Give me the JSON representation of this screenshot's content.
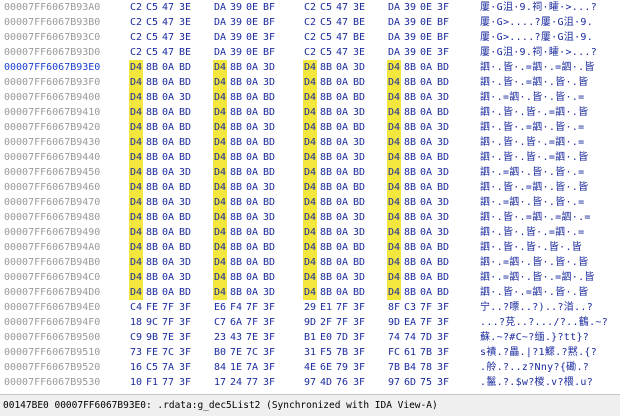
{
  "hex_view": {
    "rows": [
      {
        "address": "00007FF6067B93A0",
        "bytes": [
          "C2",
          "C5",
          "47",
          "3E",
          "DA",
          "39",
          "0E",
          "BF",
          "C2",
          "C5",
          "47",
          "3E",
          "DA",
          "39",
          "0E",
          "3F"
        ],
        "highlight": [],
        "ascii": "屢·G沮·9.祠·矐·>...?",
        "current": false
      },
      {
        "address": "00007FF6067B93B0",
        "bytes": [
          "C2",
          "C5",
          "47",
          "3E",
          "DA",
          "39",
          "0E",
          "BF",
          "C2",
          "C5",
          "47",
          "BE",
          "DA",
          "39",
          "0E",
          "BF"
        ],
        "highlight": [],
        "ascii": "屢·G>....?屢·G沮·9.",
        "current": false
      },
      {
        "address": "00007FF6067B93C0",
        "bytes": [
          "C2",
          "C5",
          "47",
          "3E",
          "DA",
          "39",
          "0E",
          "3F",
          "C2",
          "C5",
          "47",
          "BE",
          "DA",
          "39",
          "0E",
          "BF"
        ],
        "highlight": [],
        "ascii": "屢·G>....?屢·G沮·9.",
        "current": false
      },
      {
        "address": "00007FF6067B93D0",
        "bytes": [
          "C2",
          "C5",
          "47",
          "BE",
          "DA",
          "39",
          "0E",
          "BF",
          "C2",
          "C5",
          "47",
          "3E",
          "DA",
          "39",
          "0E",
          "3F"
        ],
        "highlight": [],
        "ascii": "屢·G沮·9.祠·矐·>...?",
        "current": false
      },
      {
        "address": "00007FF6067B93E0",
        "bytes": [
          "D4",
          "8B",
          "0A",
          "BD",
          "D4",
          "8B",
          "0A",
          "3D",
          "D4",
          "8B",
          "0A",
          "3D",
          "D4",
          "8B",
          "0A",
          "BD"
        ],
        "highlight": [
          0,
          4,
          8,
          12
        ],
        "ascii": "訵·.皆·.=訵·.=訵·.皆",
        "current": true
      },
      {
        "address": "00007FF6067B93F0",
        "bytes": [
          "D4",
          "8B",
          "0A",
          "BD",
          "D4",
          "8B",
          "0A",
          "3D",
          "D4",
          "8B",
          "0A",
          "BD",
          "D4",
          "8B",
          "0A",
          "BD"
        ],
        "highlight": [
          0,
          4,
          8,
          12
        ],
        "ascii": "訵·.皆·.=訵·.皆·.皆",
        "current": false
      },
      {
        "address": "00007FF6067B9400",
        "bytes": [
          "D4",
          "8B",
          "0A",
          "3D",
          "D4",
          "8B",
          "0A",
          "BD",
          "D4",
          "8B",
          "0A",
          "BD",
          "D4",
          "8B",
          "0A",
          "3D"
        ],
        "highlight": [
          0,
          4,
          8,
          12
        ],
        "ascii": "訵·.=訵·.皆·.皆·.=",
        "current": false
      },
      {
        "address": "00007FF6067B9410",
        "bytes": [
          "D4",
          "8B",
          "0A",
          "BD",
          "D4",
          "8B",
          "0A",
          "BD",
          "D4",
          "8B",
          "0A",
          "3D",
          "D4",
          "8B",
          "0A",
          "BD"
        ],
        "highlight": [
          0,
          4,
          8,
          12
        ],
        "ascii": "訵·.皆·.皆·.=訵·.皆",
        "current": false
      },
      {
        "address": "00007FF6067B9420",
        "bytes": [
          "D4",
          "8B",
          "0A",
          "BD",
          "D4",
          "8B",
          "0A",
          "3D",
          "D4",
          "8B",
          "0A",
          "BD",
          "D4",
          "8B",
          "0A",
          "3D"
        ],
        "highlight": [
          0,
          4,
          8,
          12
        ],
        "ascii": "訵·.皆·.=訵·.皆·.=",
        "current": false
      },
      {
        "address": "00007FF6067B9430",
        "bytes": [
          "D4",
          "8B",
          "0A",
          "BD",
          "D4",
          "8B",
          "0A",
          "BD",
          "D4",
          "8B",
          "0A",
          "3D",
          "D4",
          "8B",
          "0A",
          "3D"
        ],
        "highlight": [
          0,
          4,
          8,
          12
        ],
        "ascii": "訵·.皆·.皆·.=訵·.=",
        "current": false
      },
      {
        "address": "00007FF6067B9440",
        "bytes": [
          "D4",
          "8B",
          "0A",
          "BD",
          "D4",
          "8B",
          "0A",
          "BD",
          "D4",
          "8B",
          "0A",
          "3D",
          "D4",
          "8B",
          "0A",
          "BD"
        ],
        "highlight": [
          0,
          4,
          8,
          12
        ],
        "ascii": "訵·.皆·.皆·.=訵·.皆",
        "current": false
      },
      {
        "address": "00007FF6067B9450",
        "bytes": [
          "D4",
          "8B",
          "0A",
          "3D",
          "D4",
          "8B",
          "0A",
          "BD",
          "D4",
          "8B",
          "0A",
          "BD",
          "D4",
          "8B",
          "0A",
          "3D"
        ],
        "highlight": [
          0,
          4,
          8,
          12
        ],
        "ascii": "訵·.=訵·.皆·.皆·.=",
        "current": false
      },
      {
        "address": "00007FF6067B9460",
        "bytes": [
          "D4",
          "8B",
          "0A",
          "BD",
          "D4",
          "8B",
          "0A",
          "3D",
          "D4",
          "8B",
          "0A",
          "BD",
          "D4",
          "8B",
          "0A",
          "BD"
        ],
        "highlight": [
          0,
          4,
          8,
          12
        ],
        "ascii": "訵·.皆·.=訵·.皆·.皆",
        "current": false
      },
      {
        "address": "00007FF6067B9470",
        "bytes": [
          "D4",
          "8B",
          "0A",
          "3D",
          "D4",
          "8B",
          "0A",
          "BD",
          "D4",
          "8B",
          "0A",
          "BD",
          "D4",
          "8B",
          "0A",
          "3D"
        ],
        "highlight": [
          0,
          4,
          8,
          12
        ],
        "ascii": "訵·.=訵·.皆·.皆·.=",
        "current": false
      },
      {
        "address": "00007FF6067B9480",
        "bytes": [
          "D4",
          "8B",
          "0A",
          "BD",
          "D4",
          "8B",
          "0A",
          "3D",
          "D4",
          "8B",
          "0A",
          "3D",
          "D4",
          "8B",
          "0A",
          "3D"
        ],
        "highlight": [
          0,
          4,
          8,
          12
        ],
        "ascii": "訵·.皆·.=訵·.=訵·.=",
        "current": false
      },
      {
        "address": "00007FF6067B9490",
        "bytes": [
          "D4",
          "8B",
          "0A",
          "BD",
          "D4",
          "8B",
          "0A",
          "BD",
          "D4",
          "8B",
          "0A",
          "3D",
          "D4",
          "8B",
          "0A",
          "3D"
        ],
        "highlight": [
          0,
          4,
          8,
          12
        ],
        "ascii": "訵·.皆·.皆·.=訵·.=",
        "current": false
      },
      {
        "address": "00007FF6067B94A0",
        "bytes": [
          "D4",
          "8B",
          "0A",
          "BD",
          "D4",
          "8B",
          "0A",
          "BD",
          "D4",
          "8B",
          "0A",
          "BD",
          "D4",
          "8B",
          "0A",
          "BD"
        ],
        "highlight": [
          0,
          4,
          8,
          12
        ],
        "ascii": "訵·.皆·.皆·.皆·.皆",
        "current": false
      },
      {
        "address": "00007FF6067B94B0",
        "bytes": [
          "D4",
          "8B",
          "0A",
          "3D",
          "D4",
          "8B",
          "0A",
          "BD",
          "D4",
          "8B",
          "0A",
          "BD",
          "D4",
          "8B",
          "0A",
          "BD"
        ],
        "highlight": [
          0,
          4,
          8,
          12
        ],
        "ascii": "訵·.=訵·.皆·.皆·.皆",
        "current": false
      },
      {
        "address": "00007FF6067B94C0",
        "bytes": [
          "D4",
          "8B",
          "0A",
          "3D",
          "D4",
          "8B",
          "0A",
          "BD",
          "D4",
          "8B",
          "0A",
          "3D",
          "D4",
          "8B",
          "0A",
          "BD"
        ],
        "highlight": [
          0,
          4,
          8,
          12
        ],
        "ascii": "訵·.=訵·.皆·.=訵·.皆",
        "current": false
      },
      {
        "address": "00007FF6067B94D0",
        "bytes": [
          "D4",
          "8B",
          "0A",
          "BD",
          "D4",
          "8B",
          "0A",
          "3D",
          "D4",
          "8B",
          "0A",
          "BD",
          "D4",
          "8B",
          "0A",
          "BD"
        ],
        "highlight": [
          0,
          4,
          8,
          12
        ],
        "ascii": "訵·.皆·.=訵·.皆·.皆",
        "current": false
      },
      {
        "address": "00007FF6067B94E0",
        "bytes": [
          "C4",
          "FE",
          "7F",
          "3F",
          "E6",
          "F4",
          "7F",
          "3F",
          "29",
          "E1",
          "7F",
          "3F",
          "8F",
          "C3",
          "7F",
          "3F"
        ],
        "highlight": [],
        "ascii": "宁..?嘌..?)..?渞..?",
        "current": false
      },
      {
        "address": "00007FF6067B94F0",
        "bytes": [
          "18",
          "9C",
          "7F",
          "3F",
          "C7",
          "6A",
          "7F",
          "3F",
          "9D",
          "2F",
          "7F",
          "3F",
          "9D",
          "EA",
          "7F",
          "3F"
        ],
        "highlight": [],
        "ascii": "...?莌..?.../?..鶴.~?",
        "current": false
      },
      {
        "address": "00007FF6067B9500",
        "bytes": [
          "C9",
          "9B",
          "7E",
          "3F",
          "23",
          "43",
          "7E",
          "3F",
          "B1",
          "E0",
          "7D",
          "3F",
          "74",
          "74",
          "7D",
          "3F"
        ],
        "highlight": [],
        "ascii": "蘇.~?#C~?缅.}?tt}?",
        "current": false
      },
      {
        "address": "00007FF6067B9510",
        "bytes": [
          "73",
          "FE",
          "7C",
          "3F",
          "B0",
          "7E",
          "7C",
          "3F",
          "31",
          "F5",
          "7B",
          "3F",
          "FC",
          "61",
          "7B",
          "3F"
        ],
        "highlight": [],
        "ascii": "s襀.?畾.|?1鰥.?黙.{?",
        "current": false
      },
      {
        "address": "00007FF6067B9520",
        "bytes": [
          "16",
          "C5",
          "7A",
          "3F",
          "84",
          "1E",
          "7A",
          "3F",
          "4E",
          "6E",
          "79",
          "3F",
          "7B",
          "B4",
          "78",
          "3F"
        ],
        "highlight": [],
        "ascii": ".舲.?..z?Nny?{磡.?",
        "current": false
      },
      {
        "address": "00007FF6067B9530",
        "bytes": [
          "10",
          "F1",
          "77",
          "3F",
          "17",
          "24",
          "77",
          "3F",
          "97",
          "4D",
          "76",
          "3F",
          "97",
          "6D",
          "75",
          "3F"
        ],
        "highlight": [],
        "ascii": ".鬣.?.$w?椶.v?椳.u?",
        "current": false
      }
    ]
  },
  "status_bar": {
    "text": "00147BE0 00007FF6067B93E0: .rdata:g_dec5List2 (Synchronized with IDA View-A)"
  }
}
